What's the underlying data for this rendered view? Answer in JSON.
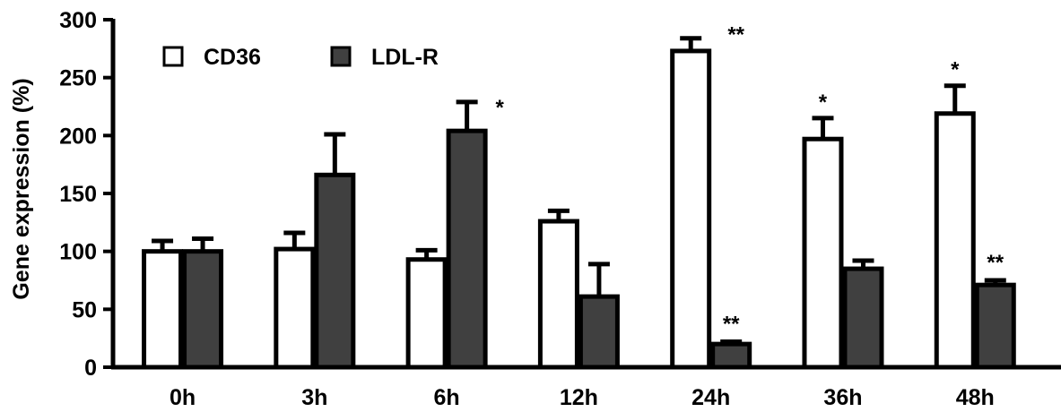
{
  "chart_data": {
    "type": "bar",
    "title": "",
    "xlabel": "",
    "ylabel": "Gene expression (%)",
    "ylim": [
      0,
      300
    ],
    "yticks": [
      0,
      50,
      100,
      150,
      200,
      250,
      300
    ],
    "categories": [
      "0h",
      "3h",
      "6h",
      "12h",
      "24h",
      "36h",
      "48h"
    ],
    "legend_position": "top-left",
    "grid": false,
    "series": [
      {
        "name": "CD36",
        "color": "#ffffff",
        "values": [
          100,
          102,
          93,
          126,
          273,
          197,
          219
        ],
        "errors": [
          9,
          14,
          8,
          9,
          11,
          18,
          24
        ],
        "significance": [
          "",
          "",
          "",
          "",
          "**",
          "*",
          "*"
        ]
      },
      {
        "name": "LDL-R",
        "color": "#404040",
        "values": [
          100,
          166,
          204,
          61,
          20,
          85,
          71
        ],
        "errors": [
          11,
          35,
          25,
          28,
          2,
          7,
          4
        ],
        "significance": [
          "",
          "",
          "*",
          "",
          "**",
          "",
          "**"
        ]
      }
    ]
  }
}
